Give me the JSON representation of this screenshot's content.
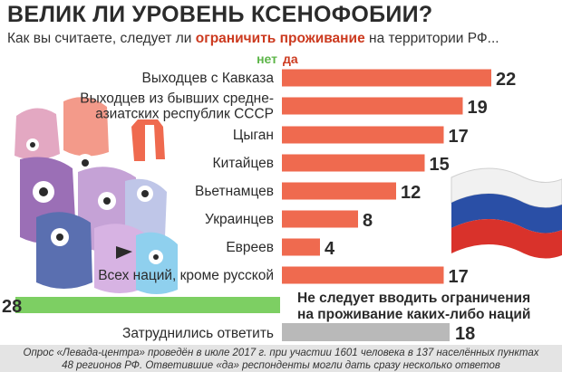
{
  "chart_data": {
    "type": "bar",
    "title": "ВЕЛИК ЛИ УРОВЕНЬ КСЕНОФОБИИ?",
    "subtitle": {
      "before": "Как вы считаете, следует ли ",
      "bold": "ограничить проживание",
      "after": " на территории РФ..."
    },
    "legend": {
      "no": "нет",
      "yes": "да"
    },
    "categories": [
      "Выходцев с Кавказа",
      "Выходцев из бывших средне-|азиатских республик СССР",
      "Цыган",
      "Китайцев",
      "Вьетнамцев",
      "Украинцев",
      "Евреев",
      "Всех наций, кроме русской"
    ],
    "values": [
      22,
      19,
      17,
      15,
      12,
      8,
      4,
      17
    ],
    "no_bar": {
      "value": 28,
      "label_line1": "Не следует вводить ограничения",
      "label_line2": "на проживание каких-либо наций"
    },
    "hard_to_say": {
      "label": "Затруднились ответить",
      "value": 18
    },
    "unit": "%",
    "footnote_line1": "Опрос «Левада-центра» проведён в июле 2017 г. при участии 1601 человека в 137 населённых пунктах",
    "footnote_line2": "48 регионов РФ. Ответившие «да» респонденты могли дать сразу несколько ответов",
    "colors": {
      "yes": "#ef6a4f",
      "no": "#7dcf63",
      "neutral": "#b9b9b9",
      "accent": "#cc3a1f",
      "text": "#2b2b2b"
    }
  }
}
